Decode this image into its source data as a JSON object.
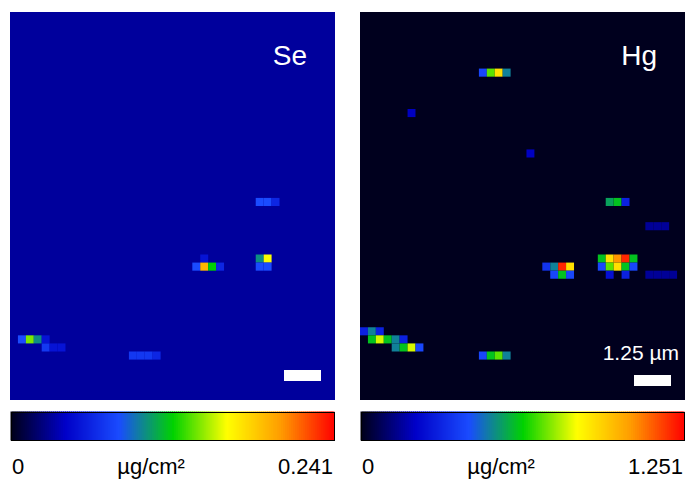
{
  "chart_data": [
    {
      "type": "heatmap",
      "title": "Se",
      "columns": 41,
      "rows": 48,
      "background": 0.03,
      "tick_labels": false,
      "cells": [
        [
          31,
          23,
          0.08
        ],
        [
          32,
          23,
          0.08
        ],
        [
          33,
          23,
          0.06
        ],
        [
          24,
          30,
          0.05
        ],
        [
          23,
          31,
          0.08
        ],
        [
          24,
          31,
          0.19
        ],
        [
          25,
          31,
          0.12
        ],
        [
          26,
          31,
          0.06
        ],
        [
          31,
          30,
          0.1
        ],
        [
          32,
          30,
          0.16
        ],
        [
          31,
          31,
          0.08
        ],
        [
          32,
          31,
          0.08
        ],
        [
          1,
          40,
          0.08
        ],
        [
          2,
          40,
          0.14
        ],
        [
          3,
          40,
          0.1
        ],
        [
          4,
          40,
          0.05
        ],
        [
          4,
          41,
          0.07
        ],
        [
          5,
          41,
          0.05
        ],
        [
          6,
          41,
          0.05
        ],
        [
          15,
          42,
          0.07
        ],
        [
          16,
          42,
          0.07
        ],
        [
          17,
          42,
          0.07
        ],
        [
          18,
          42,
          0.06
        ]
      ],
      "scale_bar": {
        "length": 1.25
      },
      "colorbar": {
        "range": [
          0,
          0.241
        ],
        "ticks": [
          0,
          0.241
        ],
        "label": "µg/cm²"
      }
    },
    {
      "type": "heatmap",
      "title": "Hg",
      "columns": 41,
      "rows": 48,
      "background": 0.005,
      "tick_labels": false,
      "cells": [
        [
          15,
          7,
          0.4
        ],
        [
          16,
          7,
          0.7
        ],
        [
          17,
          7,
          0.9
        ],
        [
          18,
          7,
          0.5
        ],
        [
          6,
          12,
          0.2
        ],
        [
          21,
          17,
          0.2
        ],
        [
          31,
          23,
          0.55
        ],
        [
          32,
          23,
          0.6
        ],
        [
          33,
          23,
          0.3
        ],
        [
          36,
          26,
          0.15
        ],
        [
          37,
          26,
          0.15
        ],
        [
          38,
          26,
          0.15
        ],
        [
          23,
          31,
          0.35
        ],
        [
          24,
          31,
          0.5
        ],
        [
          25,
          31,
          1.2
        ],
        [
          26,
          31,
          0.9
        ],
        [
          24,
          32,
          0.4
        ],
        [
          25,
          32,
          0.6
        ],
        [
          26,
          32,
          0.4
        ],
        [
          30,
          30,
          0.6
        ],
        [
          31,
          30,
          0.9
        ],
        [
          32,
          30,
          1.05
        ],
        [
          33,
          30,
          1.2
        ],
        [
          34,
          30,
          0.6
        ],
        [
          30,
          31,
          0.4
        ],
        [
          31,
          31,
          0.7
        ],
        [
          32,
          31,
          0.9
        ],
        [
          33,
          31,
          0.6
        ],
        [
          34,
          31,
          0.4
        ],
        [
          31,
          32,
          0.25
        ],
        [
          33,
          32,
          0.3
        ],
        [
          36,
          32,
          0.15
        ],
        [
          37,
          32,
          0.15
        ],
        [
          38,
          32,
          0.15
        ],
        [
          39,
          32,
          0.15
        ],
        [
          0,
          39,
          0.3
        ],
        [
          1,
          39,
          0.5
        ],
        [
          2,
          39,
          0.3
        ],
        [
          1,
          40,
          0.6
        ],
        [
          2,
          40,
          0.8
        ],
        [
          3,
          40,
          0.6
        ],
        [
          4,
          40,
          0.5
        ],
        [
          5,
          40,
          0.3
        ],
        [
          4,
          41,
          0.5
        ],
        [
          5,
          41,
          0.6
        ],
        [
          6,
          41,
          0.8
        ],
        [
          7,
          41,
          0.4
        ],
        [
          15,
          42,
          0.4
        ],
        [
          16,
          42,
          0.6
        ],
        [
          17,
          42,
          0.7
        ],
        [
          18,
          42,
          0.5
        ]
      ],
      "scale_bar": {
        "length": 1.25,
        "label": "1.25 µm"
      },
      "colorbar": {
        "range": [
          0,
          1.251
        ],
        "ticks": [
          0,
          1.251
        ],
        "label": "µg/cm²"
      }
    }
  ]
}
